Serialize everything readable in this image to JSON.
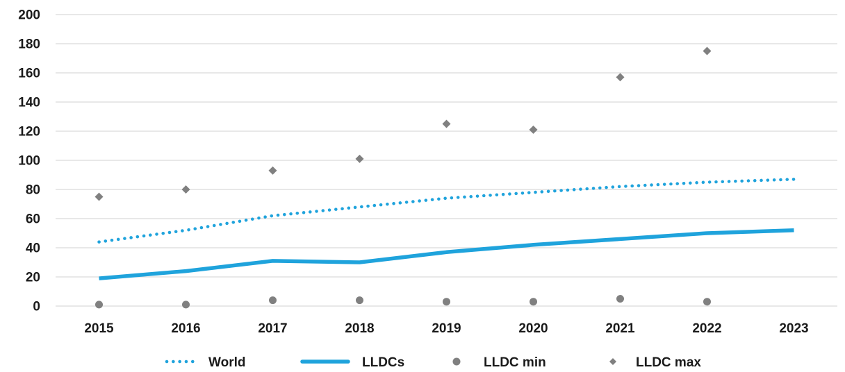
{
  "chart_data": {
    "type": "line",
    "title": "",
    "xlabel": "",
    "ylabel": "",
    "ylim": [
      0,
      200
    ],
    "yticks": [
      "0",
      "20",
      "40",
      "60",
      "80",
      "100",
      "120",
      "140",
      "160",
      "180",
      "200"
    ],
    "categories": [
      "2015",
      "2016",
      "2017",
      "2018",
      "2019",
      "2020",
      "2021",
      "2022",
      "2023"
    ],
    "grid": "horizontal",
    "legend_position": "bottom",
    "series": [
      {
        "name": "World",
        "style": "dotted-line",
        "color": "#1fa3dc",
        "values": [
          44,
          52,
          62,
          68,
          74,
          78,
          82,
          85,
          87
        ]
      },
      {
        "name": "LLDCs",
        "style": "solid-line",
        "color": "#1fa3dc",
        "values": [
          19,
          24,
          31,
          30,
          37,
          42,
          46,
          50,
          52
        ]
      },
      {
        "name": "LLDC min",
        "style": "circle-marker",
        "color": "#808080",
        "values": [
          1,
          1,
          4,
          4,
          3,
          3,
          5,
          3,
          null
        ]
      },
      {
        "name": "LLDC max",
        "style": "diamond-marker",
        "color": "#808080",
        "values": [
          75,
          80,
          93,
          101,
          125,
          121,
          157,
          175,
          null
        ]
      }
    ]
  }
}
